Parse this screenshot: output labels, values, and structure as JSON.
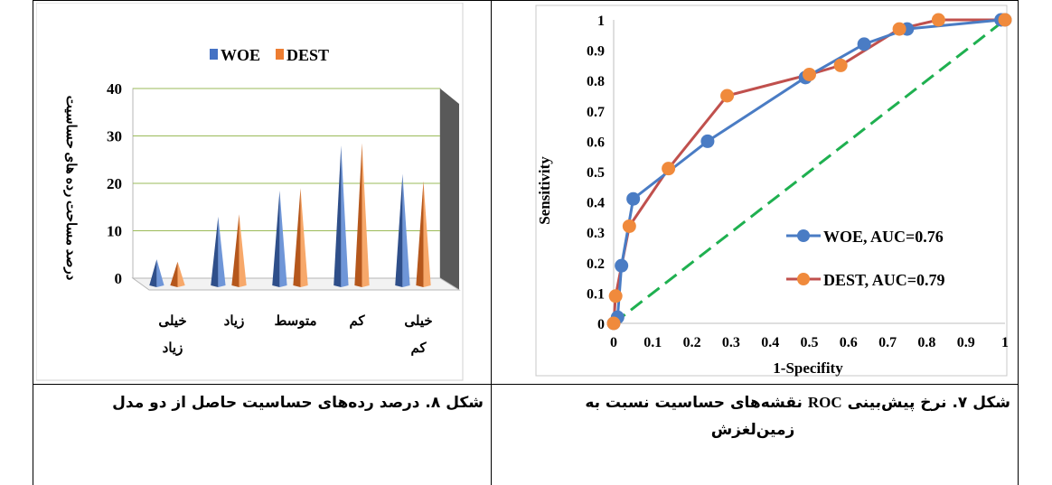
{
  "left_chart": {
    "caption": "شکل ۸. درصد رده‌های حساسیت حاصل از دو مدل",
    "chart_data": {
      "type": "bar",
      "categories": [
        "خیلی زیاد",
        "زیاد",
        "متوسط",
        "کم",
        "خیلی کم"
      ],
      "category_lines": [
        [
          "خیلی",
          "زیاد"
        ],
        [
          "زیاد"
        ],
        [
          "متوسط"
        ],
        [
          "کم"
        ],
        [
          "خیلی",
          "کم"
        ]
      ],
      "series": [
        {
          "name": "WOE",
          "values": [
            5.5,
            14.5,
            20,
            29.5,
            23.5
          ],
          "color": "#4472c4"
        },
        {
          "name": "DEST",
          "values": [
            5,
            15,
            20.5,
            30,
            22
          ],
          "color": "#ed7d31"
        }
      ],
      "ylabel": "درصد مساحت رده های حساسیت",
      "yticks": [
        "0",
        "10",
        "20",
        "30",
        "40"
      ],
      "ylim": [
        0,
        40
      ],
      "legend": "top"
    }
  },
  "right_chart": {
    "caption_prefix": "شکل ۷. نرخ پیش‌بینی",
    "caption_roc": "ROC",
    "caption_suffix": "نقشه‌های حساسیت نسبت به",
    "caption_line2": "زمین‌لغزش",
    "chart_data": {
      "type": "line",
      "xlabel": "1-Specifity",
      "ylabel": "Sensitivity",
      "xticks": [
        "0",
        "0.1",
        "0.2",
        "0.3",
        "0.4",
        "0.5",
        "0.6",
        "0.7",
        "0.8",
        "0.9",
        "1"
      ],
      "yticks": [
        "0",
        "0.1",
        "0.2",
        "0.3",
        "0.4",
        "0.5",
        "0.6",
        "0.7",
        "0.8",
        "0.9",
        "1"
      ],
      "xlim": [
        0,
        1
      ],
      "ylim": [
        0,
        1
      ],
      "legend": "right",
      "series": [
        {
          "name": "WOE, AUC=0.76",
          "color": "#4a7cc4",
          "x": [
            0,
            0.01,
            0.02,
            0.05,
            0.24,
            0.49,
            0.64,
            0.75,
            0.99,
            1
          ],
          "y": [
            0,
            0.02,
            0.19,
            0.41,
            0.6,
            0.81,
            0.92,
            0.97,
            1.0,
            1.0
          ]
        },
        {
          "name": "DEST, AUC=0.79",
          "color": "#c0504d",
          "marker_color": "#f08a3c",
          "x": [
            0,
            0.005,
            0.04,
            0.14,
            0.29,
            0.5,
            0.58,
            0.73,
            0.83,
            1
          ],
          "y": [
            0,
            0.09,
            0.32,
            0.51,
            0.75,
            0.82,
            0.85,
            0.97,
            1.0,
            1.0
          ]
        },
        {
          "name": "",
          "color": "#1fb050",
          "dashed": true,
          "x": [
            0,
            1
          ],
          "y": [
            0,
            1
          ]
        }
      ]
    }
  }
}
